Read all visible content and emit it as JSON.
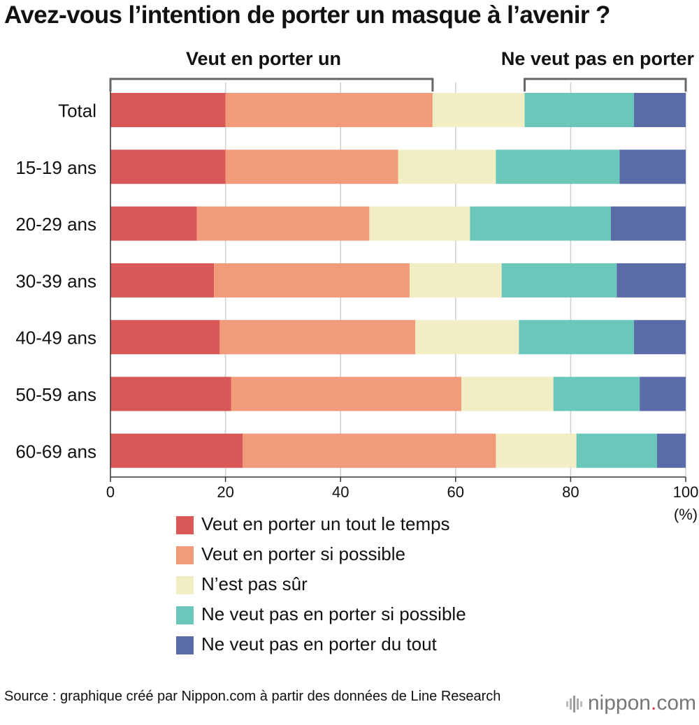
{
  "title": "Avez-vous l’intention de porter un masque à l’avenir ?",
  "chart_data": {
    "type": "bar",
    "orientation": "horizontal",
    "stacked": true,
    "categories": [
      "Total",
      "15-19 ans",
      "20-29 ans",
      "30-39 ans",
      "40-49 ans",
      "50-59 ans",
      "60-69 ans"
    ],
    "series": [
      {
        "name": "Veut en porter un tout le temps",
        "color": "#d95757",
        "values": [
          20,
          20,
          15,
          18,
          19,
          21,
          23
        ]
      },
      {
        "name": "Veut en porter si possible",
        "color": "#f19b7a",
        "values": [
          36,
          30,
          30,
          34,
          34,
          40,
          44
        ]
      },
      {
        "name": "N’est pas sûr",
        "color": "#f1edc4",
        "values": [
          16,
          17,
          17.5,
          16,
          18,
          16,
          14
        ]
      },
      {
        "name": "Ne veut pas en porter si possible",
        "color": "#6bc7b9",
        "values": [
          19,
          21.5,
          24.5,
          20,
          20,
          15,
          14
        ]
      },
      {
        "name": "Ne veut pas en porter du tout",
        "color": "#5a6ca7",
        "values": [
          9,
          11.5,
          13,
          12,
          9,
          8,
          5
        ]
      }
    ],
    "xlim": [
      0,
      100
    ],
    "xticks": [
      "0",
      "20",
      "40",
      "60",
      "80",
      "100"
    ],
    "xunit": "(%)",
    "grid": true,
    "brackets": [
      {
        "label": "Veut en porter un",
        "from": 0,
        "to": 56
      },
      {
        "label": "Ne veut pas en porter",
        "from": 72,
        "to": 100
      }
    ]
  },
  "source": "Source : graphique créé par Nippon.com à partir des données de Line Research",
  "logo": {
    "name": "nippon",
    "dot": ".",
    "suffix": "com"
  }
}
